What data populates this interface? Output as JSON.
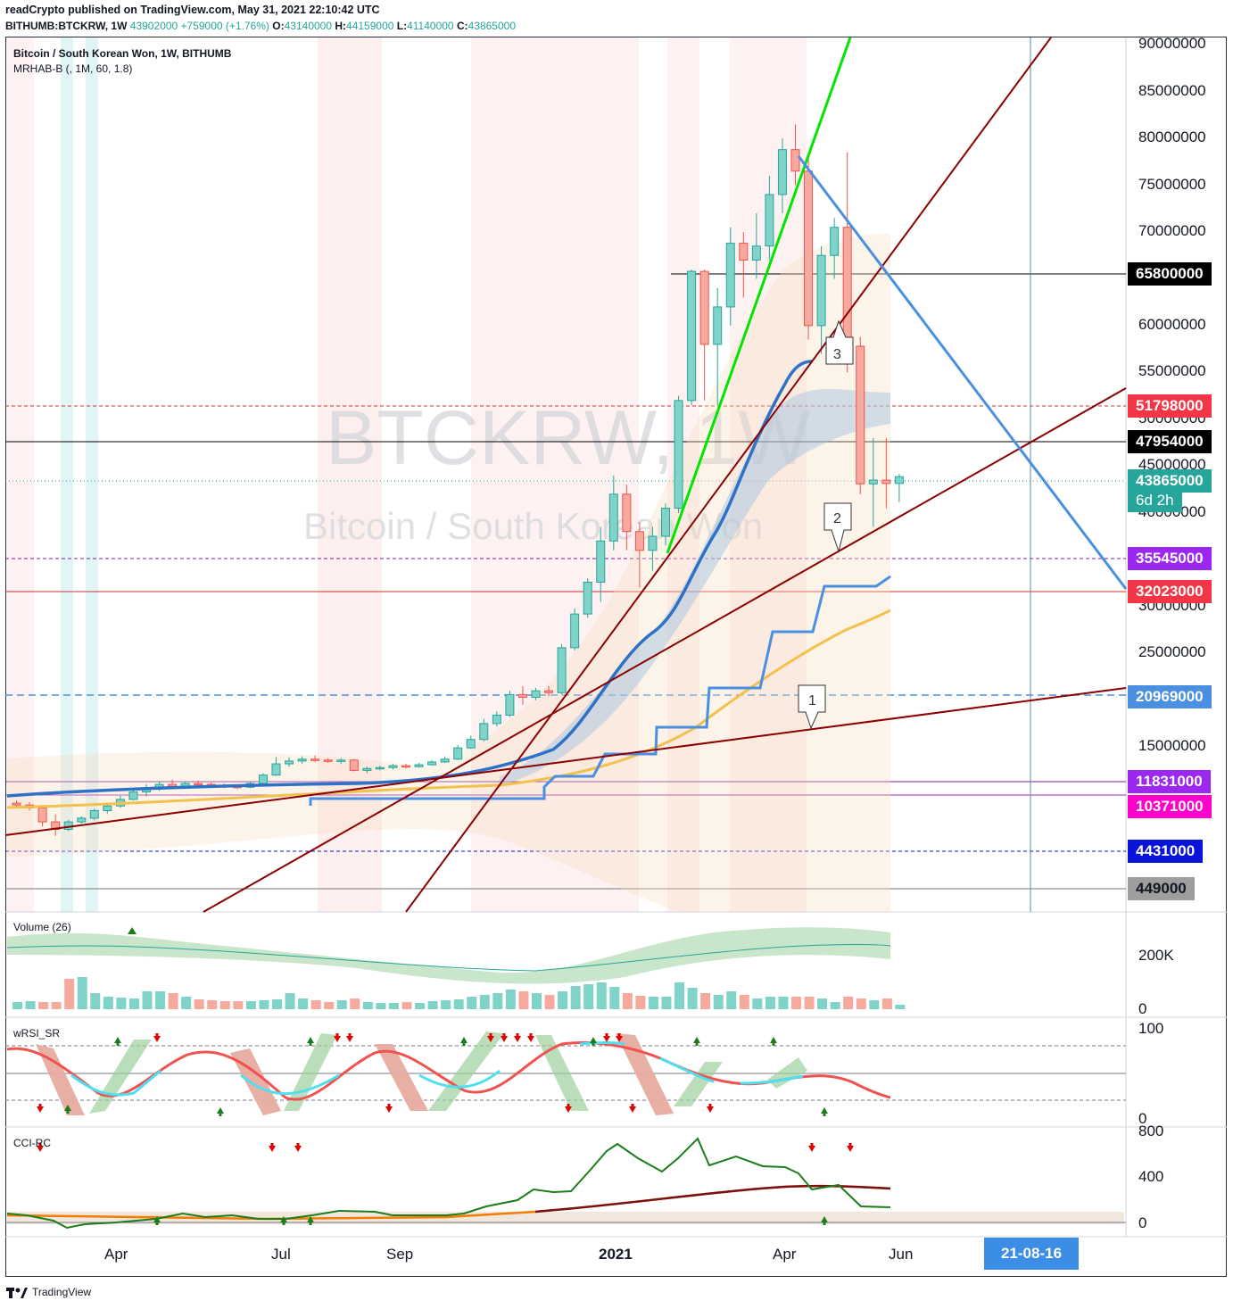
{
  "header": {
    "publisher_line": "readCrypto published on TradingView.com, May 31, 2021 22:10:42 UTC",
    "symbol": "BITHUMB:BTCKRW, 1W",
    "last": "43902000",
    "change": "+759000 (+1.76%)",
    "open_label": "O:",
    "open": "43140000",
    "high_label": "H:",
    "high": "44159000",
    "low_label": "L:",
    "low": "41140000",
    "close_label": "C:",
    "close": "43865000"
  },
  "main_pane": {
    "title": "Bitcoin / South Korean Won, 1W, BITHUMB",
    "indicator": "MRHAB-B (, 1M, 60, 1.8)",
    "watermark_symbol": "BTCKRW, 1W",
    "watermark_name": "Bitcoin / South Korean Won"
  },
  "volume_pane": {
    "title": "Volume (26)",
    "axis": [
      "200K",
      "0"
    ]
  },
  "wrsi_pane": {
    "title": "wRSI_SR",
    "axis": [
      "100",
      "0"
    ]
  },
  "cci_pane": {
    "title": "CCI-RC",
    "axis": [
      "800",
      "400",
      "0"
    ]
  },
  "price_axis": [
    "90000000",
    "85000000",
    "80000000",
    "75000000",
    "70000000",
    "60000000",
    "55000000",
    "50000000",
    "45000000",
    "40000000",
    "30000000",
    "25000000",
    "20000000",
    "15000000"
  ],
  "price_tags": [
    {
      "value": "65800000",
      "bg": "#000000"
    },
    {
      "value": "51798000",
      "bg": "#f23645"
    },
    {
      "value": "47954000",
      "bg": "#000000"
    },
    {
      "value": "43865000",
      "bg": "#26a69a"
    },
    {
      "value": "35545000",
      "bg": "#9c27f0"
    },
    {
      "value": "32023000",
      "bg": "#f23645"
    },
    {
      "value": "20969000",
      "bg": "#4a8fe0"
    },
    {
      "value": "11831000",
      "bg": "#9c27f0"
    },
    {
      "value": "10371000",
      "bg": "#ff00cc"
    },
    {
      "value": "4431000",
      "bg": "#0a14d8"
    },
    {
      "value": "449000",
      "bg": "#9e9e9e"
    }
  ],
  "countdown": "6d 2h",
  "time_axis": [
    "Apr",
    "Jul",
    "Sep",
    "2021",
    "Apr",
    "Jun"
  ],
  "time_tag": "21-08-16",
  "markers": [
    "1",
    "2",
    "3"
  ],
  "footer": "TradingView",
  "colors": {
    "up": "#26a69a",
    "down": "#ef5350",
    "ha_up": "#80cbc4",
    "ha_down": "#f4a582",
    "trend_red": "#8b0000",
    "trend_blue": "#4a8fe0",
    "trend_green": "#00e600",
    "ma_blue": "#4a90e2",
    "ma_yellow": "#f2c14e"
  },
  "chart_data": {
    "type": "candlestick",
    "title": "Bitcoin / South Korean Won, 1W, BITHUMB",
    "price_unit": "KRW",
    "ylim": [
      0,
      92000000
    ],
    "horizontal_levels": [
      65800000,
      51798000,
      47954000,
      35545000,
      32023000,
      20969000,
      11831000,
      10371000,
      4431000,
      449000
    ],
    "last_close": 43865000,
    "candles": [
      [
        9000000,
        9300000,
        8500000,
        8800000
      ],
      [
        8800000,
        9100000,
        8200000,
        8500000
      ],
      [
        8500000,
        8800000,
        6500000,
        7000000
      ],
      [
        7000000,
        7800000,
        5500000,
        6200000
      ],
      [
        6200000,
        7200000,
        6000000,
        7000000
      ],
      [
        7000000,
        7600000,
        6800000,
        7400000
      ],
      [
        7400000,
        8400000,
        7200000,
        8200000
      ],
      [
        8200000,
        8900000,
        7900000,
        8700000
      ],
      [
        8700000,
        9800000,
        8500000,
        9400000
      ],
      [
        9400000,
        10600000,
        9300000,
        10200000
      ],
      [
        10200000,
        11000000,
        9700000,
        10600000
      ],
      [
        10600000,
        11300000,
        10300000,
        11000000
      ],
      [
        11000000,
        11500000,
        10500000,
        10800000
      ],
      [
        10800000,
        11300000,
        10600000,
        11100000
      ],
      [
        11100000,
        11400000,
        10800000,
        11000000
      ],
      [
        11000000,
        11200000,
        10700000,
        10900000
      ],
      [
        10900000,
        11100000,
        10600000,
        10800000
      ],
      [
        10800000,
        11000000,
        10500000,
        10700000
      ],
      [
        10700000,
        11300000,
        10600000,
        11100000
      ],
      [
        11100000,
        12200000,
        11000000,
        12000000
      ],
      [
        12000000,
        13900000,
        11900000,
        13200000
      ],
      [
        13200000,
        13900000,
        12900000,
        13500000
      ],
      [
        13500000,
        14000000,
        13200000,
        13700000
      ],
      [
        13700000,
        14100000,
        13400000,
        13600000
      ],
      [
        13600000,
        13800000,
        13300000,
        13500000
      ],
      [
        13500000,
        13800000,
        13200000,
        13600000
      ],
      [
        13600000,
        13700000,
        12400000,
        12500000
      ],
      [
        12500000,
        12900000,
        12200000,
        12700000
      ],
      [
        12700000,
        13000000,
        12500000,
        12800000
      ],
      [
        12800000,
        13200000,
        12600000,
        13000000
      ],
      [
        13000000,
        13200000,
        12700000,
        12900000
      ],
      [
        12900000,
        13300000,
        12800000,
        13100000
      ],
      [
        13100000,
        13600000,
        13000000,
        13400000
      ],
      [
        13400000,
        14000000,
        13300000,
        13700000
      ],
      [
        13700000,
        15200000,
        13600000,
        14900000
      ],
      [
        14900000,
        16200000,
        14800000,
        15800000
      ],
      [
        15800000,
        18000000,
        15600000,
        17500000
      ],
      [
        17500000,
        18800000,
        17200000,
        18400000
      ],
      [
        18400000,
        21000000,
        18200000,
        20600000
      ],
      [
        20600000,
        21500000,
        19500000,
        20300000
      ],
      [
        20300000,
        21300000,
        20000000,
        21000000
      ],
      [
        21000000,
        21500000,
        20400000,
        20800000
      ],
      [
        20800000,
        26000000,
        20600000,
        25600000
      ],
      [
        25600000,
        29800000,
        25300000,
        29200000
      ],
      [
        29200000,
        33000000,
        28800000,
        32600000
      ],
      [
        32600000,
        38500000,
        30500000,
        37000000
      ],
      [
        37000000,
        44000000,
        36000000,
        42000000
      ],
      [
        42000000,
        43000000,
        36000000,
        38000000
      ],
      [
        38000000,
        39000000,
        32000000,
        36000000
      ],
      [
        36000000,
        38500000,
        33800000,
        37500000
      ],
      [
        37500000,
        41000000,
        36500000,
        40500000
      ],
      [
        40500000,
        52500000,
        40000000,
        52000000
      ],
      [
        52000000,
        66000000,
        51500000,
        65800000
      ],
      [
        65800000,
        66000000,
        52000000,
        58000000
      ],
      [
        58000000,
        64000000,
        51500000,
        62000000
      ],
      [
        62000000,
        70500000,
        60000000,
        68800000
      ],
      [
        68800000,
        70000000,
        63000000,
        67000000
      ],
      [
        67000000,
        72000000,
        65000000,
        68500000
      ],
      [
        68500000,
        76000000,
        67000000,
        74000000
      ],
      [
        74000000,
        80000000,
        72000000,
        78800000
      ],
      [
        78800000,
        81500000,
        75000000,
        76500000
      ],
      [
        76500000,
        78000000,
        58500000,
        60000000
      ],
      [
        60000000,
        68500000,
        57000000,
        67500000
      ],
      [
        67500000,
        71500000,
        65000000,
        70500000
      ],
      [
        70500000,
        78500000,
        55000000,
        57800000
      ],
      [
        57800000,
        58800000,
        42000000,
        43100000
      ],
      [
        43100000,
        48000000,
        38500000,
        43500000
      ],
      [
        43500000,
        48000000,
        40500000,
        43140000
      ],
      [
        43140000,
        44159000,
        41140000,
        43865000
      ]
    ],
    "trendlines": [
      "green uptrend",
      "dark-red uptrend (steep)",
      "dark-red uptrend (medium)",
      "dark-red uptrend (shallow)",
      "blue downtrend"
    ],
    "annotations": [
      "1",
      "2",
      "3"
    ],
    "x_ticks": [
      "Apr",
      "Jul",
      "Sep",
      "2021",
      "Apr",
      "Jun"
    ]
  }
}
